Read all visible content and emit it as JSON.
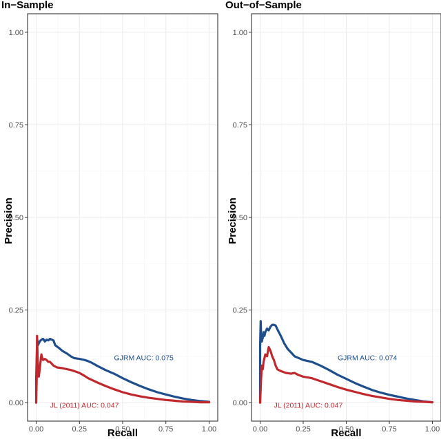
{
  "chart_data": [
    {
      "type": "line",
      "title": "In−Sample",
      "xlabel": "Recall",
      "ylabel": "Precision",
      "xlim": [
        0,
        1
      ],
      "ylim": [
        0,
        1
      ],
      "x_ticks": [
        "0.00",
        "0.25",
        "0.50",
        "0.75",
        "1.00"
      ],
      "y_ticks": [
        "0.00",
        "0.25",
        "0.50",
        "0.75",
        "1.00"
      ],
      "grid": true,
      "series": [
        {
          "color": "#1f4e8c",
          "annotation": "GJRM AUC: 0.075",
          "annotation_at": [
            0.45,
            0.122
          ],
          "points": [
            [
              0,
              0
            ],
            [
              0,
              0.06
            ],
            [
              0.004,
              0.14
            ],
            [
              0.006,
              0.17
            ],
            [
              0.01,
              0.155
            ],
            [
              0.015,
              0.16
            ],
            [
              0.02,
              0.165
            ],
            [
              0.03,
              0.17
            ],
            [
              0.04,
              0.172
            ],
            [
              0.05,
              0.165
            ],
            [
              0.06,
              0.17
            ],
            [
              0.07,
              0.168
            ],
            [
              0.08,
              0.172
            ],
            [
              0.1,
              0.168
            ],
            [
              0.11,
              0.155
            ],
            [
              0.13,
              0.148
            ],
            [
              0.15,
              0.14
            ],
            [
              0.18,
              0.132
            ],
            [
              0.2,
              0.125
            ],
            [
              0.22,
              0.12
            ],
            [
              0.25,
              0.118
            ],
            [
              0.28,
              0.115
            ],
            [
              0.3,
              0.112
            ],
            [
              0.32,
              0.108
            ],
            [
              0.35,
              0.1
            ],
            [
              0.4,
              0.088
            ],
            [
              0.45,
              0.078
            ],
            [
              0.5,
              0.066
            ],
            [
              0.55,
              0.055
            ],
            [
              0.6,
              0.045
            ],
            [
              0.65,
              0.036
            ],
            [
              0.7,
              0.028
            ],
            [
              0.75,
              0.022
            ],
            [
              0.8,
              0.016
            ],
            [
              0.85,
              0.011
            ],
            [
              0.9,
              0.007
            ],
            [
              0.95,
              0.004
            ],
            [
              1,
              0.002
            ]
          ]
        },
        {
          "color": "#c0282d",
          "annotation": "JL (2011) AUC: 0.047",
          "annotation_at": [
            0.08,
            -0.006
          ],
          "points": [
            [
              0,
              0
            ],
            [
              0.003,
              0.07
            ],
            [
              0.005,
              0.18
            ],
            [
              0.008,
              0.12
            ],
            [
              0.012,
              0.075
            ],
            [
              0.015,
              0.07
            ],
            [
              0.02,
              0.09
            ],
            [
              0.025,
              0.11
            ],
            [
              0.03,
              0.13
            ],
            [
              0.035,
              0.12
            ],
            [
              0.04,
              0.115
            ],
            [
              0.05,
              0.118
            ],
            [
              0.06,
              0.115
            ],
            [
              0.07,
              0.11
            ],
            [
              0.08,
              0.11
            ],
            [
              0.1,
              0.1
            ],
            [
              0.12,
              0.095
            ],
            [
              0.15,
              0.093
            ],
            [
              0.18,
              0.09
            ],
            [
              0.2,
              0.088
            ],
            [
              0.22,
              0.085
            ],
            [
              0.25,
              0.08
            ],
            [
              0.28,
              0.072
            ],
            [
              0.3,
              0.066
            ],
            [
              0.35,
              0.055
            ],
            [
              0.4,
              0.045
            ],
            [
              0.45,
              0.036
            ],
            [
              0.5,
              0.028
            ],
            [
              0.55,
              0.022
            ],
            [
              0.6,
              0.017
            ],
            [
              0.65,
              0.013
            ],
            [
              0.7,
              0.01
            ],
            [
              0.75,
              0.007
            ],
            [
              0.8,
              0.005
            ],
            [
              0.85,
              0.003
            ],
            [
              0.9,
              0.002
            ],
            [
              0.95,
              0.001
            ],
            [
              1,
              0.001
            ]
          ]
        }
      ]
    },
    {
      "type": "line",
      "title": "Out−of−Sample",
      "xlabel": "Recall",
      "ylabel": "Precision",
      "xlim": [
        0,
        1
      ],
      "ylim": [
        0,
        1
      ],
      "x_ticks": [
        "0.00",
        "0.25",
        "0.50",
        "0.75",
        "1.00"
      ],
      "y_ticks": [
        "0.00",
        "0.25",
        "0.50",
        "0.75",
        "1.00"
      ],
      "grid": true,
      "series": [
        {
          "color": "#1f4e8c",
          "annotation": "GJRM AUC: 0.074",
          "annotation_at": [
            0.45,
            0.122
          ],
          "points": [
            [
              0,
              0
            ],
            [
              0,
              0.15
            ],
            [
              0.003,
              0.22
            ],
            [
              0.006,
              0.18
            ],
            [
              0.01,
              0.165
            ],
            [
              0.015,
              0.175
            ],
            [
              0.02,
              0.19
            ],
            [
              0.025,
              0.18
            ],
            [
              0.03,
              0.19
            ],
            [
              0.04,
              0.2
            ],
            [
              0.05,
              0.195
            ],
            [
              0.06,
              0.205
            ],
            [
              0.07,
              0.21
            ],
            [
              0.08,
              0.21
            ],
            [
              0.09,
              0.208
            ],
            [
              0.1,
              0.198
            ],
            [
              0.12,
              0.18
            ],
            [
              0.14,
              0.16
            ],
            [
              0.16,
              0.145
            ],
            [
              0.18,
              0.135
            ],
            [
              0.2,
              0.125
            ],
            [
              0.25,
              0.115
            ],
            [
              0.3,
              0.11
            ],
            [
              0.35,
              0.1
            ],
            [
              0.4,
              0.088
            ],
            [
              0.45,
              0.075
            ],
            [
              0.5,
              0.064
            ],
            [
              0.55,
              0.053
            ],
            [
              0.6,
              0.043
            ],
            [
              0.65,
              0.034
            ],
            [
              0.7,
              0.027
            ],
            [
              0.75,
              0.021
            ],
            [
              0.8,
              0.016
            ],
            [
              0.85,
              0.011
            ],
            [
              0.9,
              0.007
            ],
            [
              0.95,
              0.003
            ],
            [
              1,
              0.001
            ]
          ]
        },
        {
          "color": "#c0282d",
          "annotation": "JL (2011) AUC: 0.047",
          "annotation_at": [
            0.08,
            -0.006
          ],
          "points": [
            [
              0,
              0
            ],
            [
              0.005,
              0.06
            ],
            [
              0.01,
              0.1
            ],
            [
              0.015,
              0.09
            ],
            [
              0.02,
              0.11
            ],
            [
              0.03,
              0.13
            ],
            [
              0.04,
              0.125
            ],
            [
              0.05,
              0.15
            ],
            [
              0.06,
              0.14
            ],
            [
              0.07,
              0.125
            ],
            [
              0.08,
              0.115
            ],
            [
              0.09,
              0.1
            ],
            [
              0.1,
              0.09
            ],
            [
              0.12,
              0.085
            ],
            [
              0.15,
              0.08
            ],
            [
              0.18,
              0.078
            ],
            [
              0.2,
              0.08
            ],
            [
              0.22,
              0.075
            ],
            [
              0.25,
              0.07
            ],
            [
              0.3,
              0.066
            ],
            [
              0.35,
              0.058
            ],
            [
              0.4,
              0.05
            ],
            [
              0.45,
              0.042
            ],
            [
              0.5,
              0.035
            ],
            [
              0.55,
              0.029
            ],
            [
              0.6,
              0.023
            ],
            [
              0.65,
              0.018
            ],
            [
              0.7,
              0.014
            ],
            [
              0.75,
              0.01
            ],
            [
              0.8,
              0.007
            ],
            [
              0.85,
              0.005
            ],
            [
              0.9,
              0.003
            ],
            [
              0.95,
              0.002
            ],
            [
              1,
              0.001
            ]
          ]
        }
      ]
    }
  ]
}
